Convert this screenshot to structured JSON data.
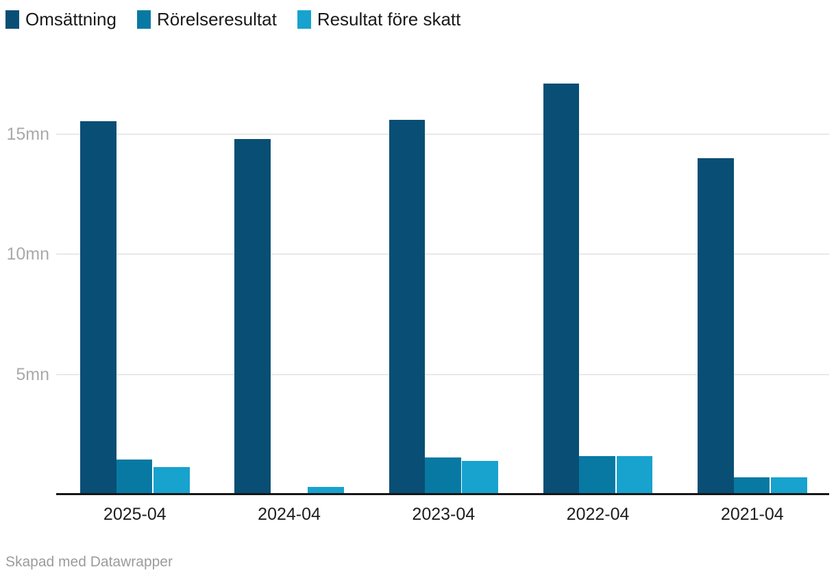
{
  "chart_data": {
    "type": "bar",
    "categories": [
      "2025-04",
      "2024-04",
      "2023-04",
      "2022-04",
      "2021-04"
    ],
    "series": [
      {
        "name": "Omsättning",
        "color": "#094e74",
        "values": [
          15.55,
          14.8,
          15.6,
          17.1,
          14.0
        ]
      },
      {
        "name": "Rörelseresultat",
        "color": "#0779a3",
        "values": [
          1.45,
          0.07,
          1.55,
          1.6,
          0.7
        ]
      },
      {
        "name": "Resultat före skatt",
        "color": "#18a2ce",
        "values": [
          1.15,
          0.3,
          1.4,
          1.6,
          0.7
        ]
      }
    ],
    "yticks": [
      {
        "value": 5,
        "label": "5mn"
      },
      {
        "value": 10,
        "label": "10mn"
      },
      {
        "value": 15,
        "label": "15mn"
      }
    ],
    "ylim": [
      0,
      17.6
    ],
    "unit": "mn",
    "title": "",
    "xlabel": "",
    "ylabel": "",
    "grid": "horizontal",
    "legend_position": "top"
  },
  "footer": {
    "credit": "Skapad med Datawrapper"
  },
  "colors": {
    "background": "#ffffff",
    "gridline": "#e9e9e9",
    "axis_line": "#151515",
    "y_tick_text": "#a9a9a9",
    "x_tick_text": "#1d1d1d",
    "legend_text": "#1a1a1a",
    "footer_text": "#9b9b9b"
  }
}
